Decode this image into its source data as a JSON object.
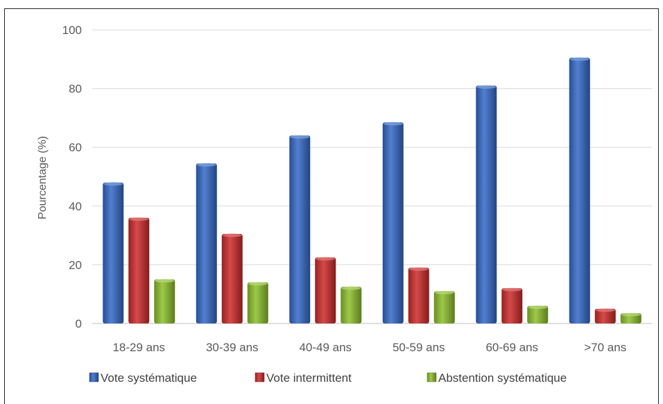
{
  "chart_data": {
    "type": "bar",
    "title": "",
    "xlabel": "",
    "ylabel": "Pourcentage (%)",
    "ylim": [
      0,
      100
    ],
    "yticks": [
      0,
      20,
      40,
      60,
      80,
      100
    ],
    "grid": true,
    "legend_position": "bottom",
    "categories": [
      "18-29 ans",
      "30-39 ans",
      "40-49 ans",
      "50-59 ans",
      "60-69 ans",
      ">70 ans"
    ],
    "series": [
      {
        "name": "Vote systématique",
        "color": "#3468c6",
        "values": [
          48,
          54.5,
          64,
          68.5,
          81,
          90.5
        ]
      },
      {
        "name": "Vote intermittent",
        "color": "#cc2a2a",
        "values": [
          36,
          30.5,
          22.5,
          19,
          12,
          5
        ]
      },
      {
        "name": "Abstention systématique",
        "color": "#8cbf2a",
        "values": [
          15,
          14,
          12.5,
          11,
          6,
          3.5
        ]
      }
    ]
  }
}
